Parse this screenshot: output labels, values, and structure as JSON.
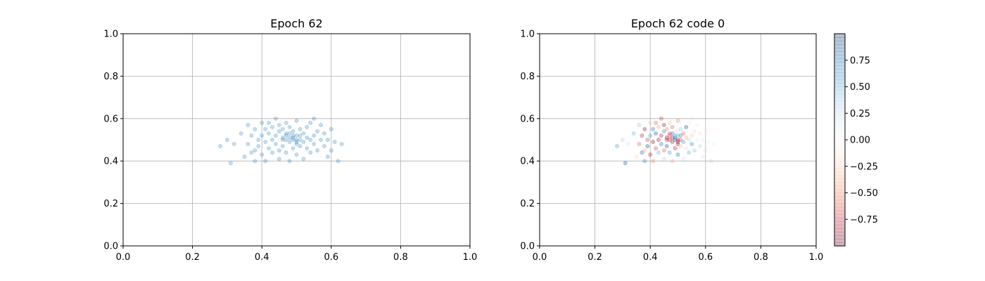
{
  "chart_data": [
    {
      "type": "scatter",
      "title": "Epoch 62",
      "xlim": [
        0,
        1
      ],
      "ylim": [
        0,
        1
      ],
      "xticks": [
        "0.0",
        "0.2",
        "0.4",
        "0.6",
        "0.8",
        "1.0"
      ],
      "yticks": [
        "0.0",
        "0.2",
        "0.4",
        "0.6",
        "0.8",
        "1.0"
      ],
      "grid": true,
      "marker_color": "#1f77b4",
      "marker_alpha": 0.25,
      "points": [
        [
          0.28,
          0.47
        ],
        [
          0.3,
          0.5
        ],
        [
          0.31,
          0.39
        ],
        [
          0.32,
          0.48
        ],
        [
          0.34,
          0.53
        ],
        [
          0.35,
          0.42
        ],
        [
          0.36,
          0.48
        ],
        [
          0.36,
          0.57
        ],
        [
          0.37,
          0.44
        ],
        [
          0.37,
          0.52
        ],
        [
          0.38,
          0.45
        ],
        [
          0.38,
          0.4
        ],
        [
          0.38,
          0.55
        ],
        [
          0.39,
          0.5
        ],
        [
          0.39,
          0.47
        ],
        [
          0.4,
          0.58
        ],
        [
          0.4,
          0.43
        ],
        [
          0.4,
          0.52
        ],
        [
          0.41,
          0.49
        ],
        [
          0.41,
          0.55
        ],
        [
          0.41,
          0.4
        ],
        [
          0.42,
          0.46
        ],
        [
          0.42,
          0.53
        ],
        [
          0.42,
          0.58
        ],
        [
          0.43,
          0.5
        ],
        [
          0.43,
          0.44
        ],
        [
          0.43,
          0.56
        ],
        [
          0.44,
          0.48
        ],
        [
          0.44,
          0.52
        ],
        [
          0.44,
          0.6
        ],
        [
          0.45,
          0.45
        ],
        [
          0.45,
          0.54
        ],
        [
          0.45,
          0.41
        ],
        [
          0.45,
          0.57
        ],
        [
          0.46,
          0.5
        ],
        [
          0.46,
          0.47
        ],
        [
          0.46,
          0.55
        ],
        [
          0.47,
          0.52
        ],
        [
          0.47,
          0.44
        ],
        [
          0.47,
          0.58
        ],
        [
          0.48,
          0.49
        ],
        [
          0.48,
          0.53
        ],
        [
          0.48,
          0.4
        ],
        [
          0.48,
          0.56
        ],
        [
          0.49,
          0.51
        ],
        [
          0.49,
          0.46
        ],
        [
          0.49,
          0.54
        ],
        [
          0.5,
          0.48
        ],
        [
          0.5,
          0.52
        ],
        [
          0.5,
          0.59
        ],
        [
          0.5,
          0.43
        ],
        [
          0.51,
          0.5
        ],
        [
          0.51,
          0.55
        ],
        [
          0.51,
          0.47
        ],
        [
          0.52,
          0.53
        ],
        [
          0.52,
          0.49
        ],
        [
          0.52,
          0.41
        ],
        [
          0.53,
          0.51
        ],
        [
          0.53,
          0.56
        ],
        [
          0.53,
          0.46
        ],
        [
          0.54,
          0.5
        ],
        [
          0.54,
          0.58
        ],
        [
          0.54,
          0.44
        ],
        [
          0.55,
          0.52
        ],
        [
          0.55,
          0.48
        ],
        [
          0.55,
          0.6
        ],
        [
          0.56,
          0.54
        ],
        [
          0.56,
          0.45
        ],
        [
          0.57,
          0.5
        ],
        [
          0.57,
          0.57
        ],
        [
          0.58,
          0.47
        ],
        [
          0.58,
          0.53
        ],
        [
          0.59,
          0.42
        ],
        [
          0.59,
          0.5
        ],
        [
          0.6,
          0.55
        ],
        [
          0.6,
          0.45
        ],
        [
          0.61,
          0.49
        ],
        [
          0.62,
          0.4
        ],
        [
          0.63,
          0.48
        ],
        [
          0.46,
          0.51
        ],
        [
          0.47,
          0.5
        ],
        [
          0.48,
          0.51
        ],
        [
          0.49,
          0.52
        ],
        [
          0.5,
          0.5
        ],
        [
          0.51,
          0.52
        ],
        [
          0.47,
          0.53
        ],
        [
          0.5,
          0.49
        ],
        [
          0.49,
          0.5
        ]
      ]
    },
    {
      "type": "scatter",
      "title": "Epoch 62 code 0",
      "xlim": [
        0,
        1
      ],
      "ylim": [
        0,
        1
      ],
      "xticks": [
        "0.0",
        "0.2",
        "0.4",
        "0.6",
        "0.8",
        "1.0"
      ],
      "yticks": [
        "0.0",
        "0.2",
        "0.4",
        "0.6",
        "0.8",
        "1.0"
      ],
      "grid": true,
      "colormap": "RdBu",
      "marker_alpha": 0.3,
      "colorbar": {
        "range": [
          -1,
          1
        ],
        "ticks": [
          "0.75",
          "0.50",
          "0.25",
          "0.00",
          "−0.25",
          "−0.50",
          "−0.75"
        ],
        "tick_values": [
          0.75,
          0.5,
          0.25,
          0.0,
          -0.25,
          -0.5,
          -0.75
        ]
      },
      "points": [
        [
          0.28,
          0.47,
          0.6
        ],
        [
          0.3,
          0.5,
          0.3
        ],
        [
          0.31,
          0.39,
          0.9
        ],
        [
          0.32,
          0.48,
          0.2
        ],
        [
          0.34,
          0.53,
          0.5
        ],
        [
          0.35,
          0.42,
          -0.2
        ],
        [
          0.36,
          0.48,
          -0.6
        ],
        [
          0.36,
          0.57,
          0.4
        ],
        [
          0.37,
          0.44,
          0.8
        ],
        [
          0.37,
          0.52,
          -0.8
        ],
        [
          0.38,
          0.45,
          -0.4
        ],
        [
          0.38,
          0.4,
          0.7
        ],
        [
          0.38,
          0.55,
          -0.9
        ],
        [
          0.39,
          0.5,
          -0.7
        ],
        [
          0.39,
          0.47,
          0.9
        ],
        [
          0.4,
          0.58,
          -0.3
        ],
        [
          0.4,
          0.43,
          -0.8
        ],
        [
          0.4,
          0.52,
          0.6
        ],
        [
          0.41,
          0.49,
          -0.9
        ],
        [
          0.41,
          0.55,
          0.8
        ],
        [
          0.41,
          0.4,
          -0.5
        ],
        [
          0.42,
          0.46,
          -0.7
        ],
        [
          0.42,
          0.53,
          0.9
        ],
        [
          0.42,
          0.58,
          -0.6
        ],
        [
          0.43,
          0.5,
          -0.9
        ],
        [
          0.43,
          0.44,
          0.5
        ],
        [
          0.43,
          0.56,
          -0.4
        ],
        [
          0.44,
          0.48,
          0.8
        ],
        [
          0.44,
          0.52,
          -0.8
        ],
        [
          0.44,
          0.6,
          -0.7
        ],
        [
          0.45,
          0.45,
          -0.6
        ],
        [
          0.45,
          0.54,
          0.7
        ],
        [
          0.45,
          0.41,
          0.3
        ],
        [
          0.45,
          0.57,
          -0.9
        ],
        [
          0.46,
          0.5,
          -0.8
        ],
        [
          0.46,
          0.47,
          0.9
        ],
        [
          0.46,
          0.55,
          -0.5
        ],
        [
          0.47,
          0.52,
          -0.7
        ],
        [
          0.47,
          0.44,
          0.6
        ],
        [
          0.47,
          0.58,
          -0.3
        ],
        [
          0.48,
          0.49,
          -0.9
        ],
        [
          0.48,
          0.53,
          0.8
        ],
        [
          0.48,
          0.4,
          -0.4
        ],
        [
          0.48,
          0.56,
          -0.6
        ],
        [
          0.49,
          0.51,
          0.7
        ],
        [
          0.49,
          0.46,
          -0.8
        ],
        [
          0.49,
          0.54,
          -0.2
        ],
        [
          0.5,
          0.48,
          -0.9
        ],
        [
          0.5,
          0.52,
          0.5
        ],
        [
          0.5,
          0.59,
          -0.5
        ],
        [
          0.5,
          0.43,
          0.8
        ],
        [
          0.51,
          0.5,
          -0.7
        ],
        [
          0.51,
          0.55,
          0.4
        ],
        [
          0.51,
          0.47,
          -0.3
        ],
        [
          0.52,
          0.53,
          -0.6
        ],
        [
          0.52,
          0.49,
          0.6
        ],
        [
          0.52,
          0.41,
          0.2
        ],
        [
          0.53,
          0.51,
          -0.4
        ],
        [
          0.53,
          0.56,
          0.9
        ],
        [
          0.53,
          0.46,
          -0.2
        ],
        [
          0.54,
          0.5,
          0.3
        ],
        [
          0.54,
          0.58,
          -0.1
        ],
        [
          0.54,
          0.44,
          0.5
        ],
        [
          0.55,
          0.52,
          -0.3
        ],
        [
          0.55,
          0.48,
          0.7
        ],
        [
          0.55,
          0.6,
          0.2
        ],
        [
          0.56,
          0.54,
          -0.2
        ],
        [
          0.56,
          0.45,
          0.4
        ],
        [
          0.57,
          0.5,
          0.1
        ],
        [
          0.57,
          0.57,
          -0.1
        ],
        [
          0.58,
          0.47,
          0.3
        ],
        [
          0.58,
          0.53,
          -0.2
        ],
        [
          0.59,
          0.42,
          0.2
        ],
        [
          0.59,
          0.5,
          0.1
        ],
        [
          0.6,
          0.55,
          -0.1
        ],
        [
          0.6,
          0.45,
          0.2
        ],
        [
          0.61,
          0.49,
          0.1
        ],
        [
          0.62,
          0.4,
          0.3
        ],
        [
          0.63,
          0.48,
          0.1
        ],
        [
          0.46,
          0.51,
          -0.9
        ],
        [
          0.47,
          0.5,
          -0.8
        ],
        [
          0.48,
          0.51,
          -0.9
        ],
        [
          0.49,
          0.52,
          0.6
        ],
        [
          0.5,
          0.5,
          -0.8
        ],
        [
          0.51,
          0.52,
          0.7
        ],
        [
          0.47,
          0.53,
          -0.7
        ],
        [
          0.5,
          0.49,
          -0.9
        ],
        [
          0.49,
          0.5,
          0.9
        ]
      ]
    }
  ]
}
